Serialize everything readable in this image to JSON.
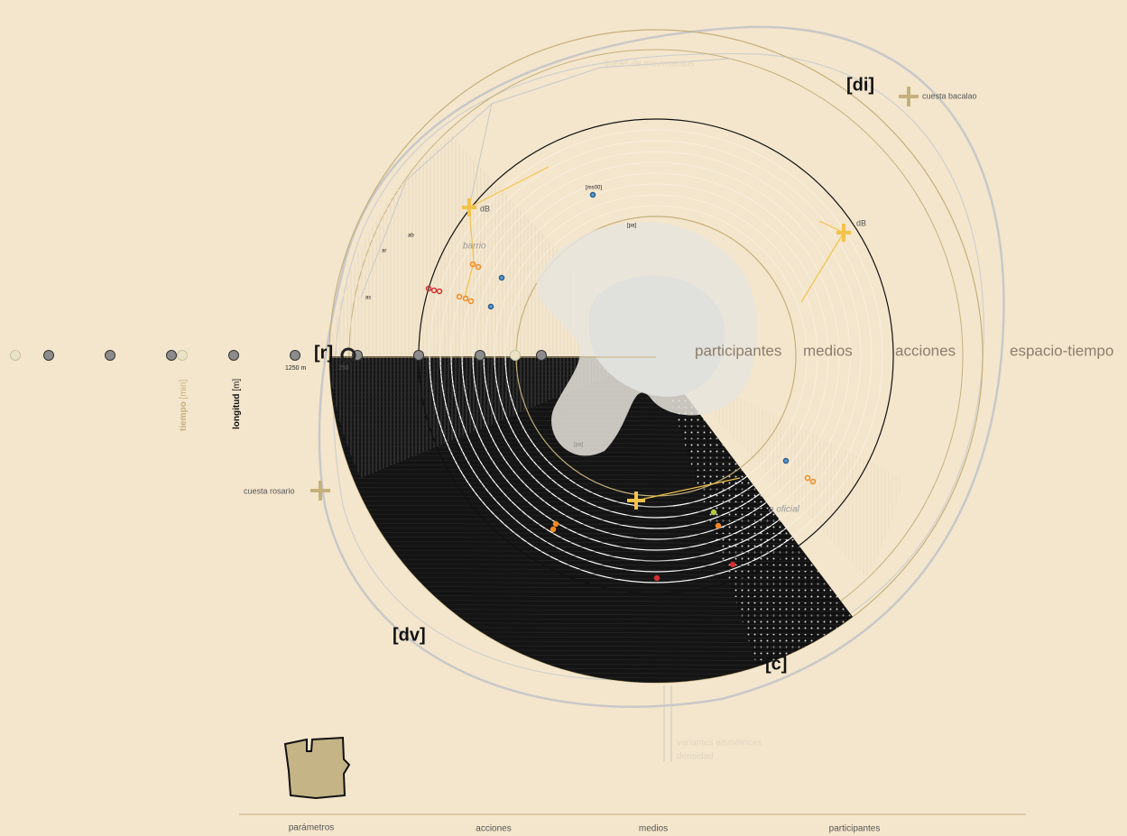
{
  "diagram": {
    "ring_label": "líneas de movimientos",
    "zones": {
      "di": "[di]",
      "dv": "[dv]",
      "c": "[c]",
      "r": "[r]"
    },
    "places": {
      "bacalao": "cuesta bacalao",
      "rosario": "cuesta rosario"
    },
    "sound": [
      "dB",
      "dB"
    ],
    "tags": {
      "ms": "[ms00]",
      "pa_top": "[pa]",
      "pa_low": "[pa]",
      "ab": "ab",
      "ar": "ar",
      "as": "as"
    },
    "routes": {
      "barrio": "barrio",
      "oficial": "a oficial"
    },
    "scale": {
      "far": "1250 m",
      "near": "250"
    },
    "axes": {
      "time": "tiempo",
      "time_unit": "[min]",
      "length": "longitud",
      "length_unit": "[m]"
    },
    "rings": [
      "participantes",
      "medios",
      "acciones",
      "espacio-tiempo"
    ],
    "bottom_note": [
      "variantes altimétricas",
      "densidad"
    ],
    "footer": [
      "parámetros",
      "acciones",
      "medios",
      "participantes"
    ]
  }
}
